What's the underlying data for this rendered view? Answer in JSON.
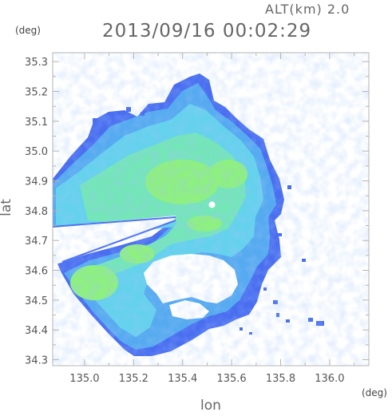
{
  "header": {
    "altitude": "ALT(km) 2.0",
    "timestamp": "2013/09/16 00:02:29"
  },
  "axes": {
    "x_label": "lon",
    "y_label": "lat",
    "x_unit": "(deg)",
    "y_unit": "(deg)",
    "x_range": [
      134.87,
      136.16
    ],
    "y_range": [
      34.28,
      35.33
    ],
    "x_ticks": [
      "135.0",
      "135.2",
      "135.4",
      "135.6",
      "135.8",
      "136.0"
    ],
    "y_ticks": [
      "35.3",
      "35.2",
      "35.1",
      "35.0",
      "34.9",
      "34.8",
      "34.7",
      "34.6",
      "34.5",
      "34.4",
      "34.3"
    ]
  },
  "radar_site": {
    "lon": 135.52,
    "lat": 34.82
  },
  "colors": {
    "frame": "#b4b4b4",
    "echo_weak": "#4a6ef0",
    "echo_low": "#55aaf0",
    "echo_mid": "#64d2ec",
    "echo_high": "#74e6b8",
    "echo_peak": "#8ef080",
    "site_marker": "#ffffff"
  }
}
